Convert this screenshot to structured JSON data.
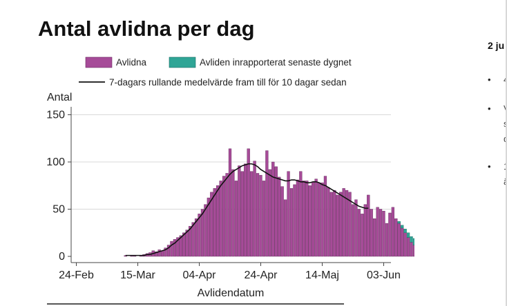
{
  "slide": {
    "title": "Antal avlidna per dag",
    "side_heading": "2 ju",
    "bullets": [
      "•",
      "•",
      "•"
    ],
    "fragments": [
      "4",
      "V",
      "s",
      "d",
      "1",
      "ä"
    ]
  },
  "colors": {
    "deaths": "#a64b98",
    "reported": "#2fa596",
    "avg": "#111111"
  },
  "chart_data": {
    "type": "bar",
    "title": "Antal avlidna per dag",
    "xlabel": "Avlidendatum",
    "ylabel": "Antal",
    "ylim": [
      0,
      150
    ],
    "yticks": [
      0,
      50,
      100,
      150
    ],
    "xticks": [
      "24-Feb",
      "15-Mar",
      "04-Apr",
      "24-Apr",
      "14-Maj",
      "03-Jun"
    ],
    "xtick_days": [
      0,
      20,
      40,
      60,
      80,
      100
    ],
    "grid": true,
    "legend_position": "top",
    "legend": [
      "Avlidna",
      "Avliden inrapporterat senaste dygnet",
      "7-dagars rullande medelvärde fram till för 10 dagar sedan"
    ],
    "start_date": "11-Mar",
    "series": [
      {
        "name": "Avlidna",
        "values": [
          1,
          0,
          1,
          1,
          0,
          1,
          2,
          3,
          4,
          6,
          5,
          7,
          6,
          9,
          12,
          16,
          18,
          20,
          22,
          25,
          28,
          32,
          36,
          40,
          45,
          50,
          55,
          62,
          68,
          72,
          75,
          80,
          85,
          88,
          114,
          92,
          80,
          96,
          90,
          98,
          114,
          90,
          101,
          88,
          86,
          80,
          112,
          92,
          100,
          95,
          84,
          74,
          60,
          90,
          72,
          76,
          81,
          90,
          80,
          80,
          75,
          79,
          82,
          78,
          78,
          85,
          73,
          68,
          70,
          65,
          68,
          72,
          70,
          68,
          55,
          60,
          50,
          45,
          55,
          65,
          50,
          40,
          52,
          50,
          48,
          35,
          46,
          52,
          40,
          35,
          30,
          25,
          20,
          15,
          12,
          8
        ]
      },
      {
        "name": "Avliden inrapporterat senaste dygnet",
        "values": [
          0,
          0,
          0,
          0,
          0,
          0,
          0,
          0,
          0,
          0,
          0,
          0,
          0,
          0,
          0,
          0,
          0,
          0,
          0,
          0,
          0,
          0,
          0,
          0,
          0,
          0,
          0,
          0,
          0,
          0,
          0,
          0,
          0,
          0,
          0,
          0,
          0,
          0,
          0,
          0,
          0,
          0,
          0,
          0,
          0,
          0,
          0,
          0,
          0,
          0,
          0,
          0,
          0,
          0,
          0,
          0,
          0,
          0,
          0,
          0,
          0,
          0,
          0,
          0,
          0,
          0,
          0,
          0,
          0,
          0,
          0,
          0,
          0,
          0,
          0,
          0,
          0,
          0,
          0,
          0,
          0,
          0,
          0,
          0,
          0,
          0,
          0,
          0,
          0,
          2,
          3,
          4,
          5,
          6,
          7,
          12
        ]
      },
      {
        "name": "7-dagars rullande medelvärde fram till för 10 dagar sedan",
        "values": [
          1,
          1,
          1,
          1,
          1,
          1,
          1,
          2,
          2,
          3,
          4,
          5,
          6,
          7,
          9,
          12,
          14,
          17,
          20,
          23,
          26,
          29,
          33,
          37,
          41,
          45,
          50,
          55,
          60,
          65,
          70,
          75,
          79,
          83,
          87,
          90,
          92,
          94,
          96,
          97,
          98,
          98,
          97,
          95,
          92,
          90,
          88,
          86,
          84,
          83,
          82,
          81,
          80,
          80,
          81,
          81,
          80,
          79,
          79,
          78,
          78,
          79,
          79,
          78,
          76,
          75,
          73,
          71,
          69,
          67,
          65,
          63,
          61,
          59,
          57,
          55,
          53,
          52,
          51,
          51
        ]
      }
    ]
  }
}
